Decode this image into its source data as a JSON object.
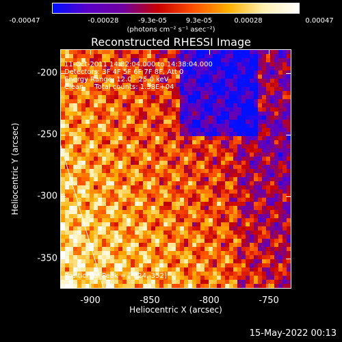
{
  "colorbar": {
    "ticks": [
      "-0.00047",
      "-0.00028",
      "-9.3e-05",
      "9.3e-05",
      "0.00028",
      "0.00047"
    ],
    "unit": "(photons cm⁻² s⁻¹ asec⁻²)",
    "colors": [
      "#0010ff",
      "#5a00c8",
      "#7000a0",
      "#c80000",
      "#ff5000",
      "#ffb000",
      "#fff0b0",
      "#ffffff"
    ]
  },
  "chart_data": {
    "type": "heatmap",
    "title": "Reconstructed RHESSI Image",
    "xlabel": "Heliocentric X (arcsec)",
    "ylabel": "Heliocentric Y (arcsec)",
    "xlim": [
      -930,
      -735
    ],
    "ylim": [
      -375,
      -180
    ],
    "xticks": [
      -900,
      -850,
      -800,
      -750
    ],
    "yticks": [
      -200,
      -250,
      -300,
      -350
    ],
    "colorbar_range": [
      -0.00047,
      0.00047
    ],
    "peak": [
      -824,
      -352
    ],
    "annotations": [
      "11-Oct-2011 14:32:04.000 to 14:38:04.000",
      "Detectors: 3F 4F 5F 6F 7F 8F, Att 0",
      "Energy Range: 12.0 - 25.0 keV",
      "Clean     Total counts: 1.38E+04"
    ],
    "peak_label": "Position of Peak = [-824,-352]"
  },
  "footer": {
    "timestamp": "15-May-2022 00:13"
  }
}
